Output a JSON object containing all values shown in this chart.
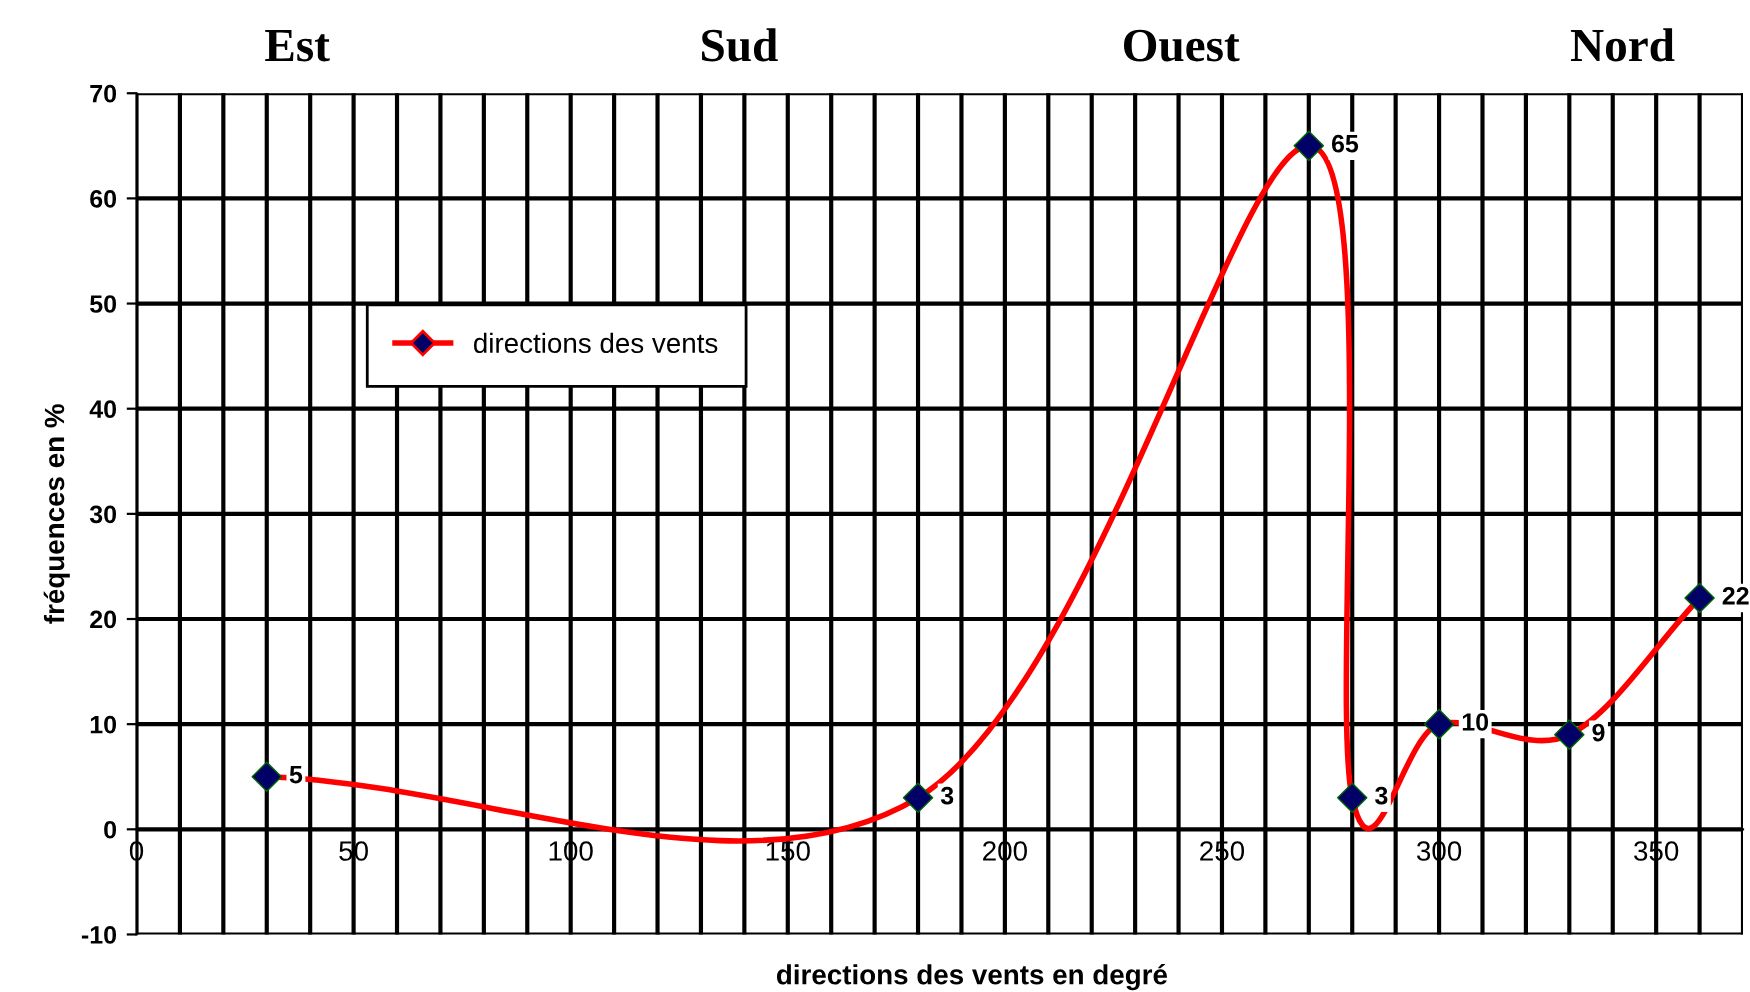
{
  "chart_data": {
    "type": "line",
    "xlabel": "directions des vents en degré",
    "ylabel": "fréquences en %",
    "annotations": [
      "Est",
      "Sud",
      "Ouest",
      "Nord"
    ],
    "x": [
      30,
      180,
      270,
      280,
      300,
      330,
      360
    ],
    "series": [
      {
        "name": "directions des vents",
        "color": "#ff0000",
        "values": [
          5,
          3,
          65,
          3,
          10,
          9,
          22
        ]
      }
    ],
    "marker": "diamond",
    "data_labels": true,
    "xlim": [
      0,
      370
    ],
    "ylim": [
      -10,
      70
    ],
    "xticks": [
      0,
      {
        "value": 10,
        "label": null
      },
      {
        "value": 20,
        "label": null
      },
      {
        "value": 30,
        "label": null
      },
      {
        "value": 40,
        "label": null
      },
      50,
      {
        "value": 60,
        "label": null
      },
      {
        "value": 70,
        "label": null
      },
      {
        "value": 80,
        "label": null
      },
      {
        "value": 90,
        "label": null
      },
      100,
      {
        "value": 110,
        "label": null
      },
      {
        "value": 120,
        "label": null
      },
      {
        "value": 130,
        "label": null
      },
      {
        "value": 140,
        "label": null
      },
      150,
      {
        "value": 160,
        "label": null
      },
      {
        "value": 170,
        "label": null
      },
      {
        "value": 180,
        "label": null
      },
      {
        "value": 190,
        "label": null
      },
      200,
      {
        "value": 210,
        "label": null
      },
      {
        "value": 220,
        "label": null
      },
      {
        "value": 230,
        "label": null
      },
      {
        "value": 240,
        "label": null
      },
      250,
      {
        "value": 260,
        "label": null
      },
      {
        "value": 270,
        "label": null
      },
      {
        "value": 280,
        "label": null
      },
      {
        "value": 290,
        "label": null
      },
      300,
      {
        "value": 310,
        "label": null
      },
      {
        "value": 320,
        "label": null
      },
      {
        "value": 330,
        "label": null
      },
      {
        "value": 340,
        "label": null
      },
      350,
      {
        "value": 360,
        "label": null
      },
      {
        "value": 370,
        "label": null
      }
    ],
    "yticks": [
      -10,
      0,
      10,
      20,
      30,
      40,
      50,
      60,
      70
    ],
    "grid": true,
    "legend": "left",
    "line_style": "solid"
  }
}
